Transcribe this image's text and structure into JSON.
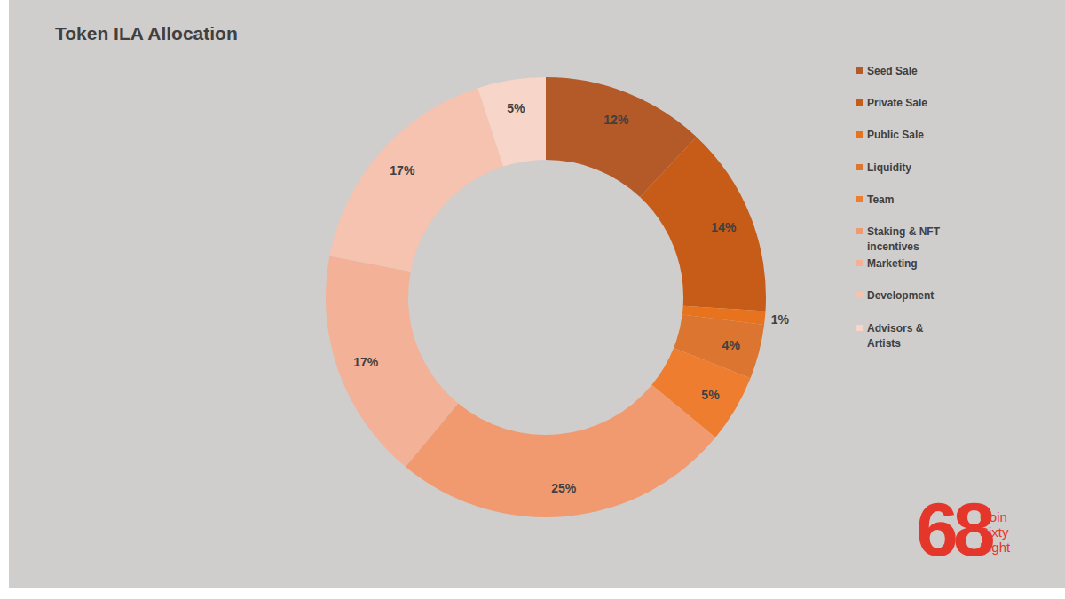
{
  "chart_data": {
    "type": "pie",
    "title": "Token ILA Allocation",
    "categories": [
      "Seed Sale",
      "Private Sale",
      "Public Sale",
      "Liquidity",
      "Team",
      "Staking & NFT incentives",
      "Marketing",
      "Development",
      "Advisors & Artists"
    ],
    "values": [
      12,
      14,
      1,
      4,
      5,
      25,
      17,
      17,
      5
    ],
    "value_labels": [
      "12%",
      "14%",
      "1%",
      "4%",
      "5%",
      "25%",
      "17%",
      "17%",
      "5%"
    ],
    "colors": [
      "#b35a28",
      "#c65c17",
      "#e8731e",
      "#dc7530",
      "#ef7d30",
      "#f19a70",
      "#f3b197",
      "#f5c3af",
      "#f7d5c8"
    ],
    "data_labels": true,
    "legend": "upper right",
    "annotations": [
      "68",
      "Coin",
      "Sixty",
      "Eight"
    ]
  }
}
